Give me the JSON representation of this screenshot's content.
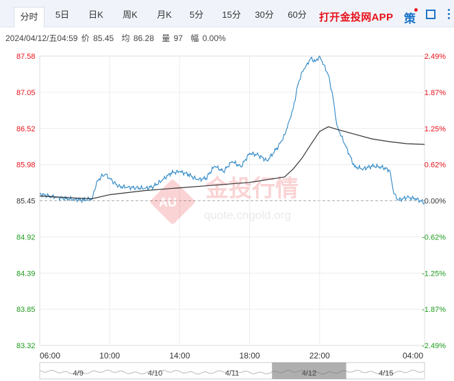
{
  "tabs": [
    "分时",
    "5日",
    "日K",
    "周K",
    "月K",
    "5分",
    "15分",
    "30分",
    "60分"
  ],
  "promo": "打开金投网APP",
  "icons": {
    "strategy": "策",
    "fullscreen": "fullscreen-icon",
    "menu": "more-vertical-icon"
  },
  "info": {
    "datetime": "2024/04/12/五04:59",
    "price_label": "价",
    "price": "85.45",
    "avg_label": "均",
    "avg": "86.28",
    "vol_label": "量",
    "vol": "97",
    "pct_label": "幅",
    "pct": "0.00%"
  },
  "watermark": {
    "text": "金投行情",
    "url": "quote.cngold.org"
  },
  "colors": {
    "up": "#e8101a",
    "down": "#1d9b1d",
    "price_line": "#2b86c5",
    "avg_line": "#333333",
    "ref_line": "#aaaaaa"
  },
  "chart_data": {
    "type": "line",
    "ylim": [
      83.32,
      87.58
    ],
    "y_ticks_left": [
      "87.58",
      "87.05",
      "86.52",
      "85.98",
      "85.45",
      "84.92",
      "84.39",
      "83.85",
      "83.32"
    ],
    "y_ticks_right": [
      "2.49%",
      "1.87%",
      "1.25%",
      "0.62%",
      "0.00%",
      "-0.62%",
      "-1.25%",
      "-1.87%",
      "-2.49%"
    ],
    "reference_price": 85.45,
    "x_ticks": [
      "06:00",
      "10:00",
      "14:00",
      "18:00",
      "22:00",
      "04:00"
    ],
    "grid": true,
    "series": [
      {
        "role": "price",
        "x": [
          "06:00",
          "06:30",
          "07:00",
          "07:30",
          "08:00",
          "08:30",
          "09:00",
          "09:15",
          "09:30",
          "09:45",
          "10:00",
          "10:15",
          "10:30",
          "11:00",
          "11:30",
          "12:00",
          "12:30",
          "13:00",
          "13:30",
          "14:00",
          "14:30",
          "15:00",
          "15:30",
          "16:00",
          "16:30",
          "17:00",
          "17:30",
          "18:00",
          "18:30",
          "19:00",
          "19:30",
          "19:45",
          "20:00",
          "20:15",
          "20:30",
          "20:45",
          "21:00",
          "21:15",
          "21:30",
          "21:45",
          "22:00",
          "22:15",
          "22:30",
          "22:45",
          "23:00",
          "23:15",
          "23:30",
          "00:00",
          "00:30",
          "01:00",
          "01:30",
          "02:00",
          "02:15",
          "02:30",
          "03:00",
          "03:30",
          "04:00"
        ],
        "values": [
          85.55,
          85.52,
          85.5,
          85.48,
          85.47,
          85.46,
          85.48,
          85.72,
          85.8,
          85.84,
          85.78,
          85.72,
          85.66,
          85.65,
          85.64,
          85.63,
          85.66,
          85.75,
          85.86,
          85.88,
          85.84,
          85.76,
          85.78,
          85.96,
          85.88,
          86.03,
          85.95,
          86.15,
          86.12,
          86.04,
          86.2,
          86.3,
          86.42,
          86.62,
          86.82,
          87.15,
          87.35,
          87.45,
          87.55,
          87.5,
          87.58,
          87.45,
          87.3,
          87.0,
          86.55,
          86.4,
          86.25,
          85.95,
          85.92,
          85.96,
          85.95,
          85.9,
          85.55,
          85.46,
          85.5,
          85.48,
          85.42
        ]
      },
      {
        "role": "average",
        "x": [
          "06:00",
          "08:00",
          "09:00",
          "10:00",
          "12:00",
          "14:00",
          "16:00",
          "18:00",
          "19:00",
          "20:00",
          "20:30",
          "21:00",
          "21:30",
          "22:00",
          "22:30",
          "23:00",
          "00:00",
          "01:00",
          "02:00",
          "03:00",
          "04:00"
        ],
        "values": [
          85.52,
          85.49,
          85.48,
          85.54,
          85.6,
          85.64,
          85.68,
          85.72,
          85.76,
          85.8,
          85.92,
          86.08,
          86.28,
          86.47,
          86.54,
          86.5,
          86.43,
          86.36,
          86.32,
          86.29,
          86.28
        ]
      }
    ]
  },
  "navigator": {
    "labels": [
      "4/9",
      "4/10",
      "4/11",
      "4/12",
      "4/15"
    ],
    "selected": "4/12"
  }
}
